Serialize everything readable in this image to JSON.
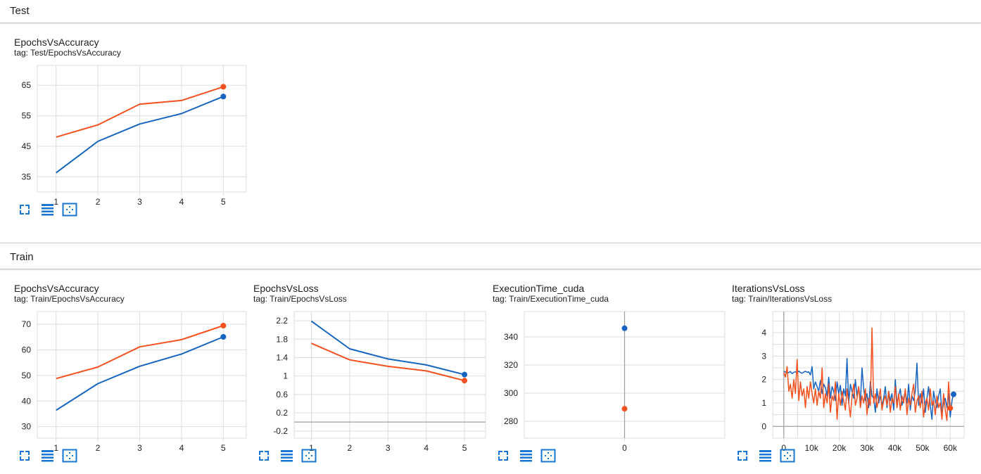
{
  "colors": {
    "orange": "#f4511e",
    "blue": "#1565c0",
    "grid": "#dddddd",
    "axis": "#9e9e9e",
    "tool": "#1976d2"
  },
  "sections": [
    {
      "title": "Test"
    },
    {
      "title": "Train"
    }
  ],
  "toolbar_icons": [
    "fullscreen-icon",
    "data-table-icon",
    "fit-domain-icon"
  ],
  "cards": [
    {
      "title": "EpochsVsAccuracy",
      "tag": "tag: Test/EpochsVsAccuracy"
    },
    {
      "title": "EpochsVsAccuracy",
      "tag": "tag: Train/EpochsVsAccuracy"
    },
    {
      "title": "EpochsVsLoss",
      "tag": "tag: Train/EpochsVsLoss"
    },
    {
      "title": "ExecutionTime_cuda",
      "tag": "tag: Train/ExecutionTime_cuda"
    },
    {
      "title": "IterationsVsLoss",
      "tag": "tag: Train/IterationsVsLoss"
    }
  ],
  "chart_data": [
    {
      "type": "line",
      "xlim": [
        0.55,
        5.55
      ],
      "ylim": [
        30,
        71.5
      ],
      "xticks": [
        1,
        2,
        3,
        4,
        5
      ],
      "yticks": [
        35,
        45,
        55,
        65
      ],
      "xtick_labels": [
        "1",
        "2",
        "3",
        "4",
        "5"
      ],
      "ytick_labels": [
        "35",
        "45",
        "55",
        "65"
      ],
      "zero_line": false,
      "series": [
        {
          "color": "orange",
          "x": [
            1,
            2,
            3,
            4,
            5
          ],
          "y": [
            48,
            52,
            58.8,
            60,
            64.5
          ]
        },
        {
          "color": "blue",
          "x": [
            1,
            2,
            3,
            4,
            5
          ],
          "y": [
            36.3,
            46.6,
            52.3,
            55.7,
            61.3
          ]
        }
      ]
    },
    {
      "type": "line",
      "xlim": [
        0.55,
        5.55
      ],
      "ylim": [
        25.5,
        75
      ],
      "xticks": [
        1,
        2,
        3,
        4,
        5
      ],
      "yticks": [
        30,
        40,
        50,
        60,
        70
      ],
      "xtick_labels": [
        "1",
        "2",
        "3",
        "4",
        "5"
      ],
      "ytick_labels": [
        "30",
        "40",
        "50",
        "60",
        "70"
      ],
      "zero_line": false,
      "series": [
        {
          "color": "orange",
          "x": [
            1,
            2,
            3,
            4,
            5
          ],
          "y": [
            48.8,
            53.3,
            61.2,
            64,
            69.5
          ]
        },
        {
          "color": "blue",
          "x": [
            1,
            2,
            3,
            4,
            5
          ],
          "y": [
            36.4,
            46.8,
            53.6,
            58.4,
            65.1
          ]
        }
      ]
    },
    {
      "type": "line",
      "xlim": [
        0.55,
        5.55
      ],
      "ylim": [
        -0.35,
        2.4
      ],
      "xticks": [
        1,
        2,
        3,
        4,
        5
      ],
      "yticks": [
        -0.2,
        0.2,
        0.6,
        1,
        1.4,
        1.8,
        2.2
      ],
      "xtick_labels": [
        "1",
        "2",
        "3",
        "4",
        "5"
      ],
      "ytick_labels": [
        "-0.2",
        "0.2",
        "0.6",
        "1",
        "1.4",
        "1.8",
        "2.2"
      ],
      "zero_line": true,
      "series": [
        {
          "color": "blue",
          "x": [
            1,
            2,
            3,
            4,
            5
          ],
          "y": [
            2.19,
            1.59,
            1.37,
            1.24,
            1.03
          ]
        },
        {
          "color": "orange",
          "x": [
            1,
            2,
            3,
            4,
            5
          ],
          "y": [
            1.71,
            1.35,
            1.21,
            1.11,
            0.9
          ]
        }
      ]
    },
    {
      "type": "scatter",
      "xlim": [
        -1,
        1
      ],
      "ylim": [
        268,
        358
      ],
      "xticks": [
        0
      ],
      "yticks": [
        280,
        300,
        320,
        340
      ],
      "xtick_labels": [
        "0"
      ],
      "ytick_labels": [
        "280",
        "300",
        "320",
        "340"
      ],
      "zero_line": false,
      "x_zero_line": true,
      "series": [
        {
          "color": "blue",
          "x": [
            0
          ],
          "y": [
            346.1
          ]
        },
        {
          "color": "orange",
          "x": [
            0
          ],
          "y": [
            288.9
          ]
        }
      ]
    },
    {
      "type": "line",
      "xlim": [
        -4000,
        65000
      ],
      "ylim": [
        -0.5,
        4.9
      ],
      "xticks": [
        0,
        10000,
        20000,
        30000,
        40000,
        50000,
        60000
      ],
      "yticks": [
        0,
        1,
        2,
        3,
        4
      ],
      "xtick_labels": [
        "0",
        "10k",
        "20k",
        "30k",
        "40k",
        "50k",
        "60k"
      ],
      "ytick_labels": [
        "0",
        "1",
        "2",
        "3",
        "4"
      ],
      "zero_line": true,
      "x_zero_line": true,
      "series": [
        {
          "color": "blue",
          "step": 600,
          "end_dot": true,
          "y": [
            2.35,
            2.32,
            2.28,
            2.3,
            2.34,
            2.25,
            2.31,
            2.33,
            2.29,
            2.36,
            2.3,
            2.27,
            2.32,
            2.35,
            2.31,
            2.33,
            2.2,
            2.55,
            1.6,
            1.9,
            1.7,
            1.5,
            1.95,
            1.4,
            1.8,
            1.65,
            1.3,
            2.1,
            1.2,
            1.7,
            1.5,
            1.1,
            1.9,
            1.4,
            1.75,
            0.9,
            1.6,
            1.3,
            2.9,
            1.0,
            1.8,
            1.5,
            1.2,
            2.0,
            1.3,
            1.7,
            1.0,
            2.5,
            1.6,
            1.1,
            1.4,
            0.8,
            1.9,
            1.3,
            1.2,
            0.6,
            1.6,
            1.0,
            1.3,
            0.9,
            1.2,
            1.7,
            0.8,
            1.5,
            1.1,
            1.4,
            0.7,
            2.0,
            1.0,
            1.3,
            1.6,
            0.9,
            1.2,
            1.5,
            1.0,
            1.8,
            0.7,
            1.3,
            1.1,
            1.5,
            2.7,
            0.9,
            1.4,
            1.0,
            1.6,
            0.6,
            1.2,
            1.7,
            0.9,
            0.3,
            1.5,
            1.1,
            0.8,
            1.3,
            1.6,
            0.5,
            1.0,
            1.2,
            0.8,
            1.4,
            0.4,
            1.1,
            1.37
          ]
        },
        {
          "color": "orange",
          "step": 600,
          "end_dot": true,
          "y": [
            2.3,
            2.1,
            2.55,
            1.5,
            1.8,
            1.2,
            2.0,
            1.4,
            2.85,
            1.1,
            1.9,
            1.3,
            1.6,
            0.8,
            1.7,
            1.2,
            1.9,
            1.4,
            1.0,
            1.6,
            0.9,
            1.5,
            1.2,
            2.5,
            0.8,
            1.4,
            1.0,
            1.8,
            0.6,
            1.3,
            1.1,
            1.9,
            0.3,
            1.4,
            0.9,
            1.5,
            1.1,
            0.7,
            1.6,
            1.0,
            0.4,
            1.3,
            1.8,
            0.9,
            1.2,
            1.7,
            0.8,
            1.3,
            1.0,
            1.6,
            0.5,
            1.2,
            0.9,
            4.2,
            1.0,
            1.4,
            0.8,
            1.2,
            1.6,
            0.7,
            1.1,
            1.3,
            0.9,
            1.5,
            0.6,
            1.2,
            1.0,
            1.7,
            0.8,
            1.4,
            0.7,
            1.3,
            1.0,
            1.6,
            0.5,
            1.2,
            0.9,
            1.4,
            1.8,
            0.6,
            1.1,
            1.3,
            0.8,
            1.5,
            0.4,
            1.0,
            1.2,
            0.7,
            1.6,
            0.9,
            1.1,
            0.5,
            1.3,
            0.8,
            1.0,
            0.3,
            1.4,
            0.7,
            0.25,
            1.9,
            0.78
          ]
        }
      ]
    }
  ]
}
